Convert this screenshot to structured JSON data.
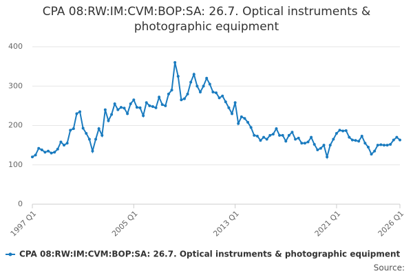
{
  "chart_data": {
    "type": "line",
    "title": "CPA 08:RW:IM:CVM:BOP:SA: 26.7. Optical instruments & photographic equipment",
    "source_label": "Source:",
    "categories": [
      "1997 Q1",
      null,
      null,
      null,
      null,
      null,
      null,
      null,
      null,
      null,
      null,
      null,
      null,
      null,
      null,
      null,
      null,
      null,
      null,
      null,
      null,
      null,
      null,
      null,
      null,
      null,
      null,
      null,
      null,
      null,
      null,
      null,
      "2005 Q1",
      null,
      null,
      null,
      null,
      null,
      null,
      null,
      null,
      null,
      null,
      null,
      null,
      null,
      null,
      null,
      null,
      null,
      null,
      null,
      null,
      null,
      null,
      null,
      null,
      null,
      null,
      null,
      null,
      null,
      null,
      null,
      "2013 Q1",
      null,
      null,
      null,
      null,
      null,
      null,
      null,
      null,
      null,
      null,
      null,
      null,
      null,
      null,
      null,
      null,
      null,
      null,
      null,
      null,
      null,
      null,
      null,
      null,
      null,
      null,
      null,
      null,
      null,
      null,
      null,
      "2021 Q1",
      null,
      null,
      null,
      null,
      null,
      null,
      null,
      null,
      null,
      null,
      null,
      null,
      null,
      null,
      null,
      null,
      null,
      null,
      null,
      "2026 Q1"
    ],
    "series": [
      {
        "name": "CPA 08:RW:IM:CVM:BOP:SA: 26.7. Optical instruments & photographic equipment",
        "color": "#1a7bbf",
        "values": [
          120,
          125,
          142,
          138,
          132,
          135,
          130,
          132,
          140,
          158,
          150,
          155,
          188,
          192,
          230,
          235,
          193,
          180,
          165,
          135,
          165,
          192,
          175,
          240,
          212,
          228,
          255,
          240,
          246,
          244,
          230,
          255,
          265,
          246,
          245,
          225,
          258,
          250,
          248,
          245,
          272,
          253,
          250,
          280,
          290,
          360,
          325,
          265,
          268,
          280,
          310,
          330,
          300,
          285,
          300,
          320,
          305,
          285,
          283,
          270,
          275,
          260,
          245,
          230,
          258,
          205,
          222,
          218,
          208,
          195,
          175,
          173,
          162,
          170,
          165,
          175,
          178,
          192,
          175,
          175,
          160,
          175,
          183,
          165,
          168,
          155,
          155,
          158,
          170,
          152,
          138,
          142,
          150,
          120,
          150,
          165,
          180,
          188,
          186,
          187,
          170,
          163,
          162,
          160,
          173,
          155,
          145,
          127,
          135,
          150,
          151,
          150,
          150,
          152,
          163,
          170,
          163
        ]
      }
    ],
    "ylim": [
      0,
      400
    ],
    "yticks": [
      0,
      100,
      200,
      300,
      400
    ],
    "grid": true
  }
}
